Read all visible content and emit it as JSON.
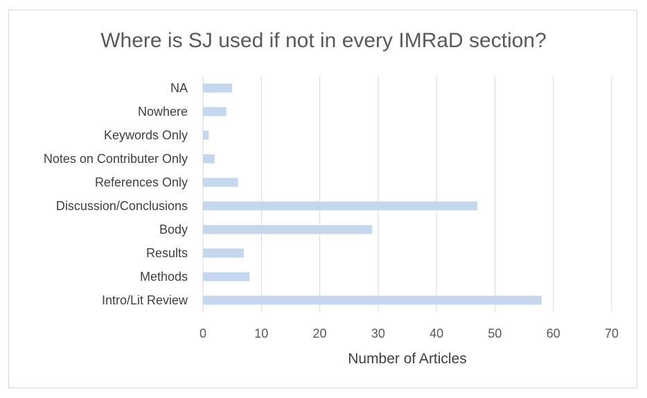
{
  "chart_data": {
    "type": "bar",
    "orientation": "horizontal",
    "title": "Where is SJ used if not in every IMRaD section?",
    "xlabel": "Number of Articles",
    "ylabel": "",
    "categories": [
      "NA",
      "Nowhere",
      "Keywords Only",
      "Notes on Contributer Only",
      "References Only",
      "Discussion/Conclusions",
      "Body",
      "Results",
      "Methods",
      "Intro/Lit Review"
    ],
    "values": [
      5,
      4,
      1,
      2,
      6,
      47,
      29,
      7,
      8,
      58
    ],
    "xlim": [
      0,
      70
    ],
    "xticks": [
      0,
      10,
      20,
      30,
      40,
      50,
      60,
      70
    ],
    "grid": true,
    "legend": "none",
    "bar_color": "#c5d7ec"
  }
}
